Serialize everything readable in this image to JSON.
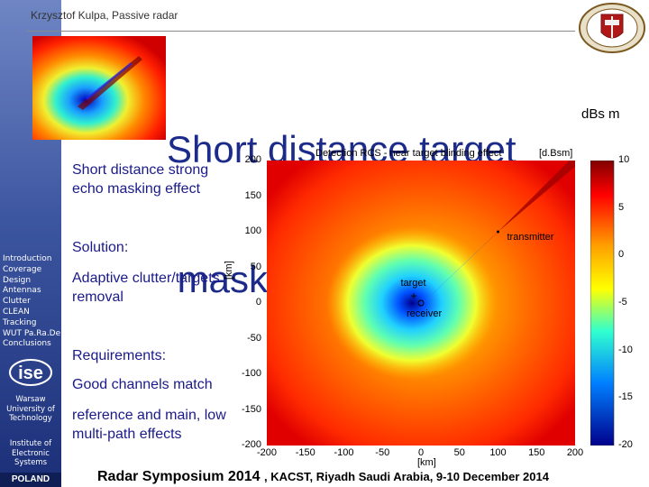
{
  "header": {
    "author": "Krzysztof Kulpa, Passive radar"
  },
  "title": {
    "line1": "Short distance target",
    "line2": " masking effect"
  },
  "colorbar_unit_label": "dBs m",
  "bullets": {
    "masking": "Short distance strong echo masking effect",
    "solution_heading": "Solution:",
    "solution_text": "Adaptive clutter/targets removal",
    "requirements_heading": "Requirements:",
    "req1": "Good channels match",
    "req2": "reference and main, low multi-path effects"
  },
  "sidebar": {
    "nav_items": [
      "Introduction",
      "Coverage",
      "Design",
      "Antennas",
      "Clutter",
      "CLEAN",
      "Tracking",
      "WUT Pa.Ra.De",
      "Conclusions"
    ],
    "logo_text": "ise",
    "university": [
      "Warsaw",
      "University of",
      "Technology"
    ],
    "institute": [
      "Institute of",
      "Electronic",
      "Systems"
    ],
    "country": "POLAND"
  },
  "footer": {
    "event": "Radar Symposium 2014 ",
    "location": ", KACST, Riyadh  Saudi Arabia,  9-10 December 2014"
  },
  "chart_data": {
    "type": "heatmap",
    "title": "Detection RCS - near target blinding effect",
    "unit_label": "[d.Bsm]",
    "xlabel": "[km]",
    "ylabel": "[km]",
    "xlim": [
      -200,
      200
    ],
    "ylim": [
      -200,
      200
    ],
    "x_ticks": [
      "-200",
      "-150",
      "-100",
      "-50",
      "0",
      "50",
      "100",
      "150",
      "200"
    ],
    "y_ticks": [
      "200",
      "150",
      "100",
      "50",
      "0",
      "-50",
      "-100",
      "-150",
      "-200"
    ],
    "colorbar": {
      "range": [
        -20,
        10
      ],
      "ticks": [
        "10",
        "5",
        "0",
        "-5",
        "-10",
        "-15",
        "-20"
      ]
    },
    "annotations": [
      {
        "label": "transmitter",
        "x": 100,
        "y": 100
      },
      {
        "label": "target",
        "x": -10,
        "y": 10
      },
      {
        "label": "receiver",
        "x": 0,
        "y": 0
      }
    ]
  }
}
